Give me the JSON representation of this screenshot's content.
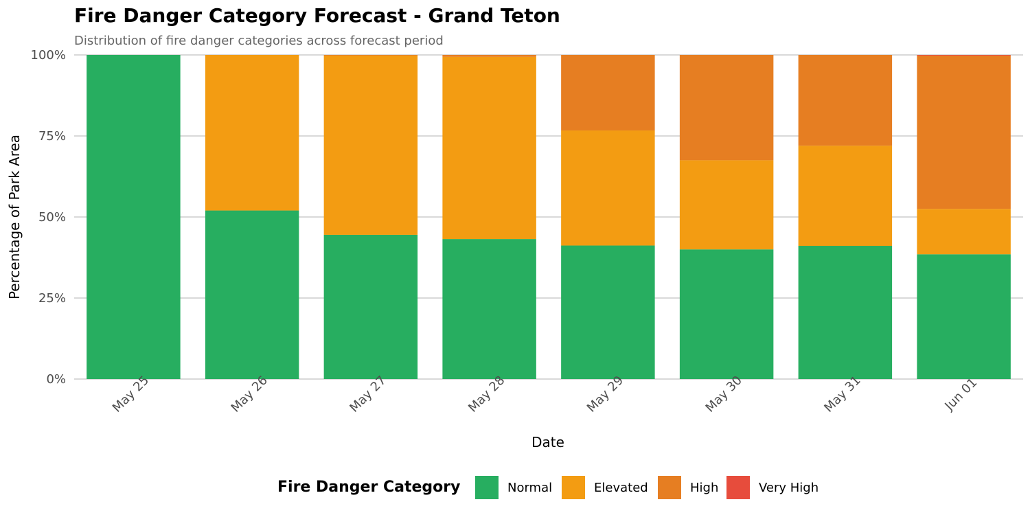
{
  "chart_data": {
    "type": "bar",
    "stacked": true,
    "title": "Fire Danger Category Forecast - Grand Teton",
    "subtitle": "Distribution of fire danger categories across forecast period",
    "xlabel": "Date",
    "ylabel": "Percentage of Park Area",
    "ylim": [
      0,
      100
    ],
    "y_ticks": [
      "0%",
      "25%",
      "50%",
      "75%",
      "100%"
    ],
    "grid": true,
    "legend_position": "bottom",
    "legend_title": "Fire Danger Category",
    "categories": [
      "May 25",
      "May 26",
      "May 27",
      "May 28",
      "May 29",
      "May 30",
      "May 31",
      "Jun 01"
    ],
    "series": [
      {
        "name": "Normal",
        "color": "#27AE60",
        "values": [
          100,
          52,
          44.5,
          43.2,
          41.2,
          40,
          41.1,
          38.5
        ]
      },
      {
        "name": "Elevated",
        "color": "#F39C12",
        "values": [
          0,
          48,
          55.3,
          56.2,
          35.5,
          27.5,
          30.9,
          14
        ]
      },
      {
        "name": "High",
        "color": "#E67E22",
        "values": [
          0,
          0,
          0.2,
          0.6,
          23.3,
          32.5,
          28,
          47.3
        ]
      },
      {
        "name": "Very High",
        "color": "#E74C3C",
        "values": [
          0,
          0,
          0,
          0,
          0,
          0,
          0,
          0.2
        ]
      }
    ]
  }
}
